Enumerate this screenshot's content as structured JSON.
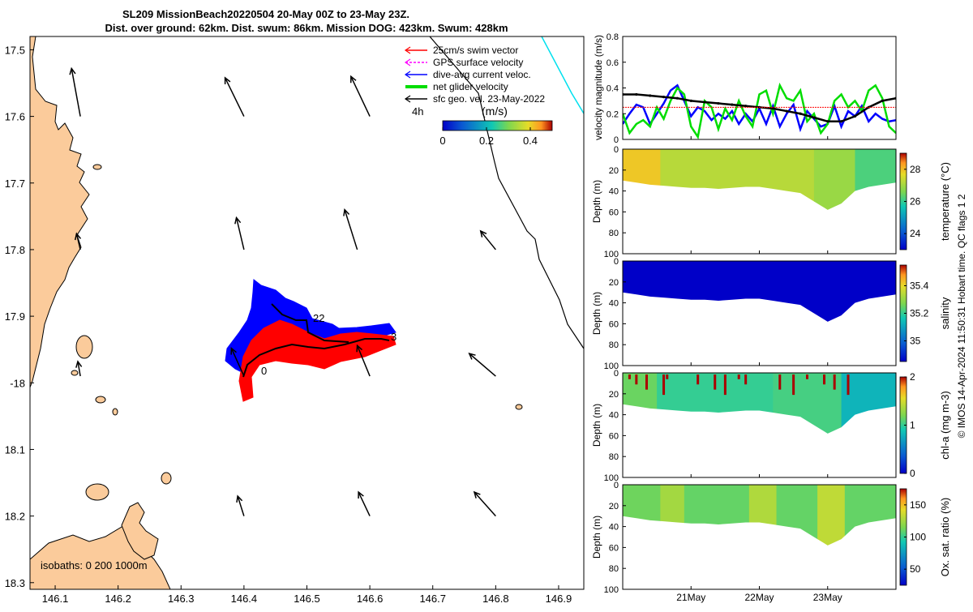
{
  "title": {
    "line1": "SL209 MissionBeach20220504 20-May 00Z to 23-May 23Z.",
    "line2": "Dist. over ground: 62km. Dist. swum: 86km. Mission DOG: 423km. Swum: 428km"
  },
  "copyright": "© IMOS 14-Apr-2024 11:50:31 Hobart time. QC flags 1  2",
  "colors": {
    "land": "#fbcb9b",
    "swim": "#ff0000",
    "gps": "#ff00ff",
    "current": "#0000ff",
    "net": "#00dd00",
    "geo": "#000000",
    "cyan_track": "#00e0ee"
  },
  "chart_data": [
    {
      "type": "map",
      "xlim": [
        146.06,
        146.94
      ],
      "ylim": [
        -18.31,
        -17.48
      ],
      "x_ticks": [
        146.1,
        146.2,
        146.3,
        146.4,
        146.5,
        146.6,
        146.7,
        146.8,
        146.9
      ],
      "y_ticks": [
        -17.5,
        -17.6,
        -17.7,
        -17.8,
        -17.9,
        -18.0,
        -18.1,
        -18.2,
        -18.3
      ],
      "x_tick_labels": [
        "146.1",
        "146.2",
        "146.3",
        "146.4",
        "146.5",
        "146.6",
        "146.7",
        "146.8",
        "146.9"
      ],
      "y_tick_labels": [
        "17.5",
        "17.6",
        "17.7",
        "17.8",
        "17.9",
        "-18",
        "18.1",
        "18.2",
        "18.3"
      ],
      "legend": {
        "position": "top-right",
        "entries": [
          {
            "label": "25cm/s swim vector",
            "color": "#ff0000"
          },
          {
            "label": "GPS surface velocity",
            "color": "#ff00ff"
          },
          {
            "label": "dive-avg current veloc.",
            "color": "#0000ff"
          },
          {
            "label": "net glider velocity",
            "color": "#00dd00"
          },
          {
            "label": "sfc geo. vel. 23-May-2022",
            "color": "#000000"
          }
        ]
      },
      "colorbar": {
        "label": "(m/s)",
        "interval_label": "4h",
        "ticks": [
          "0",
          "0.2",
          "0.4"
        ],
        "range": [
          0,
          0.5
        ]
      },
      "isobath_label": "isobaths: 0   200 1000m",
      "track_labels": [
        "22",
        "3",
        "0"
      ],
      "geo_vectors": [
        {
          "lon": 146.14,
          "lat": -17.6,
          "dlon": -0.014,
          "dlat": 0.072
        },
        {
          "lon": 146.4,
          "lat": -17.6,
          "dlon": -0.03,
          "dlat": 0.058
        },
        {
          "lon": 146.6,
          "lat": -17.6,
          "dlon": -0.03,
          "dlat": 0.06
        },
        {
          "lon": 146.14,
          "lat": -17.8,
          "dlon": -0.006,
          "dlat": 0.024
        },
        {
          "lon": 146.4,
          "lat": -17.8,
          "dlon": -0.012,
          "dlat": 0.048
        },
        {
          "lon": 146.58,
          "lat": -17.8,
          "dlon": -0.02,
          "dlat": 0.06
        },
        {
          "lon": 146.8,
          "lat": -17.8,
          "dlon": -0.024,
          "dlat": 0.028
        },
        {
          "lon": 146.14,
          "lat": -17.99,
          "dlon": -0.004,
          "dlat": 0.022
        },
        {
          "lon": 146.4,
          "lat": -17.99,
          "dlon": -0.02,
          "dlat": 0.042
        },
        {
          "lon": 146.6,
          "lat": -17.99,
          "dlon": -0.02,
          "dlat": 0.046
        },
        {
          "lon": 146.8,
          "lat": -17.99,
          "dlon": -0.042,
          "dlat": 0.034
        },
        {
          "lon": 146.4,
          "lat": -18.2,
          "dlon": -0.01,
          "dlat": 0.03
        },
        {
          "lon": 146.6,
          "lat": -18.2,
          "dlon": -0.018,
          "dlat": 0.036
        },
        {
          "lon": 146.8,
          "lat": -18.2,
          "dlon": -0.034,
          "dlat": 0.036
        }
      ]
    },
    {
      "type": "line",
      "ylabel": "velocity magnitude (m/s)",
      "ylim": [
        0,
        0.8
      ],
      "y_ticks": [
        0,
        0.2,
        0.4,
        0.6,
        0.8
      ],
      "y_tick_labels": [
        "0",
        "0.2",
        "0.4",
        "0.6",
        "0.8"
      ],
      "x_range_days": [
        20,
        24
      ],
      "series": [
        {
          "name": "dive-avg current veloc.",
          "color": "#0000ff",
          "x": [
            20.0,
            20.1,
            20.2,
            20.3,
            20.4,
            20.5,
            20.6,
            20.7,
            20.8,
            20.9,
            21.0,
            21.1,
            21.2,
            21.3,
            21.4,
            21.5,
            21.6,
            21.7,
            21.8,
            21.9,
            22.0,
            22.1,
            22.2,
            22.3,
            22.4,
            22.5,
            22.6,
            22.7,
            22.8,
            22.9,
            23.0,
            23.1,
            23.2,
            23.3,
            23.4,
            23.5,
            23.6,
            23.7,
            23.8,
            23.9,
            24.0
          ],
          "y": [
            0.12,
            0.2,
            0.27,
            0.25,
            0.12,
            0.2,
            0.28,
            0.38,
            0.42,
            0.3,
            0.18,
            0.25,
            0.22,
            0.15,
            0.2,
            0.16,
            0.22,
            0.12,
            0.2,
            0.14,
            0.24,
            0.12,
            0.26,
            0.1,
            0.2,
            0.27,
            0.08,
            0.22,
            0.16,
            0.1,
            0.12,
            0.26,
            0.1,
            0.22,
            0.18,
            0.26,
            0.14,
            0.2,
            0.16,
            0.14,
            0.15
          ]
        },
        {
          "name": "net glider velocity",
          "color": "#00dd00",
          "x": [
            20.0,
            20.1,
            20.2,
            20.3,
            20.4,
            20.5,
            20.6,
            20.7,
            20.8,
            20.9,
            21.0,
            21.1,
            21.2,
            21.3,
            21.4,
            21.5,
            21.6,
            21.7,
            21.8,
            21.9,
            22.0,
            22.1,
            22.2,
            22.3,
            22.4,
            22.5,
            22.6,
            22.7,
            22.8,
            22.9,
            23.0,
            23.1,
            23.2,
            23.3,
            23.4,
            23.5,
            23.6,
            23.7,
            23.8,
            23.9,
            24.0
          ],
          "y": [
            0.2,
            0.05,
            0.12,
            0.15,
            0.1,
            0.25,
            0.16,
            0.3,
            0.4,
            0.35,
            0.1,
            0.02,
            0.3,
            0.25,
            0.08,
            0.24,
            0.15,
            0.3,
            0.18,
            0.1,
            0.35,
            0.38,
            0.2,
            0.42,
            0.32,
            0.3,
            0.38,
            0.14,
            0.2,
            0.05,
            0.12,
            0.3,
            0.35,
            0.25,
            0.3,
            0.22,
            0.38,
            0.42,
            0.32,
            0.1,
            0.05
          ]
        },
        {
          "name": "speed",
          "color": "#000000",
          "x": [
            20.0,
            20.2,
            20.4,
            20.6,
            20.8,
            21.0,
            21.2,
            21.4,
            21.6,
            21.8,
            22.0,
            22.2,
            22.4,
            22.6,
            22.8,
            23.0,
            23.2,
            23.4,
            23.6,
            23.8,
            24.0
          ],
          "y": [
            0.35,
            0.35,
            0.34,
            0.33,
            0.32,
            0.3,
            0.29,
            0.28,
            0.27,
            0.26,
            0.25,
            0.24,
            0.22,
            0.2,
            0.17,
            0.14,
            0.14,
            0.18,
            0.25,
            0.3,
            0.32
          ]
        },
        {
          "name": "reference",
          "color": "#ff0000",
          "x": [
            20.0,
            24.0
          ],
          "y": [
            0.25,
            0.25
          ]
        }
      ]
    },
    {
      "type": "heatmap",
      "variable": "temperature",
      "ylabel": "Depth (m)",
      "colorbar_label": "temperature (°C)",
      "ylim": [
        0,
        100
      ],
      "y_tick_labels": [
        "0",
        "20",
        "40",
        "60",
        "80",
        "100"
      ],
      "clim": [
        23,
        29
      ],
      "colorbar_ticks": [
        24,
        26,
        28
      ],
      "colorbar_tick_labels": [
        "24",
        "26",
        "28"
      ],
      "x_range_days": [
        20,
        24
      ],
      "max_depth_profile": [
        30,
        32,
        34,
        35,
        36,
        37,
        37,
        38,
        37,
        36,
        36,
        38,
        40,
        42,
        50,
        58,
        52,
        40,
        36,
        34,
        32
      ],
      "shade_bands": [
        {
          "x0": 20.0,
          "x1": 20.55,
          "value": 27.9
        },
        {
          "x0": 20.55,
          "x1": 22.8,
          "value": 27.2
        },
        {
          "x0": 22.8,
          "x1": 23.4,
          "value": 26.9
        },
        {
          "x0": 23.4,
          "x1": 24.0,
          "value": 26.2
        }
      ]
    },
    {
      "type": "heatmap",
      "variable": "salinity",
      "ylabel": "Depth (m)",
      "colorbar_label": "salinity",
      "ylim": [
        0,
        100
      ],
      "y_tick_labels": [
        "0",
        "20",
        "40",
        "60",
        "80",
        "100"
      ],
      "clim": [
        34.85,
        35.55
      ],
      "colorbar_ticks": [
        35.0,
        35.2,
        35.4
      ],
      "colorbar_tick_labels": [
        "35",
        "35.2",
        "35.4"
      ],
      "x_range_days": [
        20,
        24
      ],
      "max_depth_profile": [
        30,
        32,
        34,
        35,
        36,
        37,
        37,
        38,
        37,
        36,
        36,
        38,
        40,
        42,
        50,
        58,
        52,
        40,
        36,
        34,
        32
      ],
      "shade_bands": [
        {
          "x0": 20.0,
          "x1": 24.0,
          "value": 34.85
        }
      ]
    },
    {
      "type": "heatmap",
      "variable": "chl-a",
      "ylabel": "Depth (m)",
      "colorbar_label": "chl-a (mg m-3)",
      "ylim": [
        0,
        100
      ],
      "y_tick_labels": [
        "0",
        "20",
        "40",
        "60",
        "80",
        "100"
      ],
      "clim": [
        0,
        2
      ],
      "colorbar_ticks": [
        0,
        1,
        2
      ],
      "colorbar_tick_labels": [
        "0",
        "1",
        "2"
      ],
      "x_range_days": [
        20,
        24
      ],
      "max_depth_profile": [
        30,
        32,
        34,
        35,
        36,
        37,
        37,
        38,
        37,
        36,
        36,
        38,
        40,
        42,
        50,
        58,
        52,
        40,
        36,
        34,
        32
      ],
      "shade_bands": [
        {
          "x0": 20.0,
          "x1": 20.5,
          "value": 1.15
        },
        {
          "x0": 20.5,
          "x1": 22.2,
          "value": 1.0
        },
        {
          "x0": 22.2,
          "x1": 23.2,
          "value": 1.05
        },
        {
          "x0": 23.2,
          "x1": 24.0,
          "value": 0.8
        }
      ]
    },
    {
      "type": "heatmap",
      "variable": "oxygen saturation",
      "ylabel": "Depth (m)",
      "colorbar_label": "Ox. sat. ratio (%)",
      "ylim": [
        0,
        100
      ],
      "y_tick_labels": [
        "0",
        "20",
        "40",
        "60",
        "80",
        "100"
      ],
      "clim": [
        25,
        175
      ],
      "colorbar_ticks": [
        50,
        100,
        150
      ],
      "colorbar_tick_labels": [
        "50",
        "100",
        "150"
      ],
      "x_range_days": [
        20,
        24
      ],
      "x_tick_days": [
        21,
        22,
        23
      ],
      "x_tick_labels": [
        "21May",
        "22May",
        "23May"
      ],
      "max_depth_profile": [
        30,
        32,
        34,
        35,
        36,
        37,
        37,
        38,
        37,
        36,
        36,
        38,
        40,
        42,
        50,
        58,
        52,
        40,
        36,
        34,
        32
      ],
      "shade_bands": [
        {
          "x0": 20.0,
          "x1": 20.55,
          "value": 112
        },
        {
          "x0": 20.55,
          "x1": 20.9,
          "value": 125
        },
        {
          "x0": 20.9,
          "x1": 21.85,
          "value": 110
        },
        {
          "x0": 21.85,
          "x1": 22.25,
          "value": 128
        },
        {
          "x0": 22.25,
          "x1": 22.85,
          "value": 110
        },
        {
          "x0": 22.85,
          "x1": 23.25,
          "value": 132
        },
        {
          "x0": 23.25,
          "x1": 24.0,
          "value": 110
        }
      ]
    }
  ]
}
